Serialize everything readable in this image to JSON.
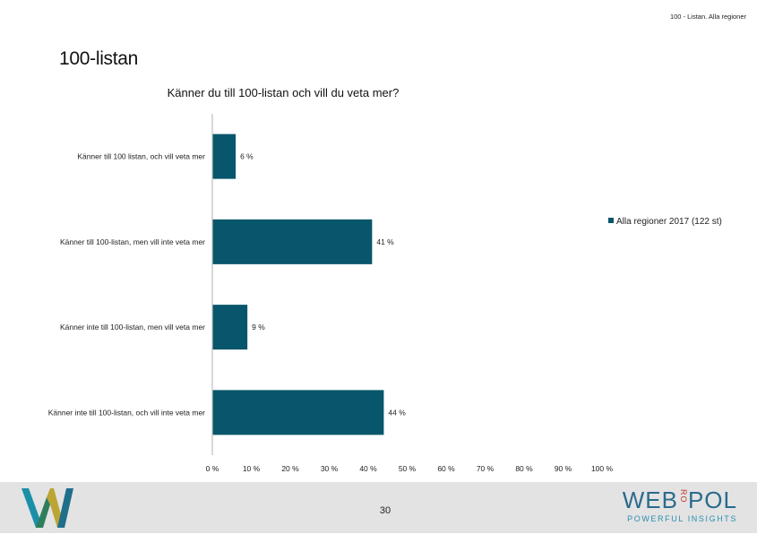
{
  "header": {
    "right_text": "100 - Listan. Alla regioner"
  },
  "page_title": "100-listan",
  "colors": {
    "bar": "#07566b",
    "axis": "#bfbfbf",
    "footer_bg": "#e3e3e3",
    "brand_blue": "#2a6b8c",
    "brand_red": "#c0392b"
  },
  "chart_data": {
    "type": "bar",
    "orientation": "horizontal",
    "title": "Känner du till 100-listan och vill du veta mer?",
    "categories": [
      "Känner till 100 listan, och vill veta mer",
      "Känner till 100-listan, men vill inte veta mer",
      "Känner inte till 100-listan, men vill veta mer",
      "Känner inte till 100-listan, och vill inte veta mer"
    ],
    "series": [
      {
        "name": "Alla regioner 2017 (122 st)",
        "values": [
          6,
          41,
          9,
          44
        ],
        "labels": [
          "6 %",
          "41 %",
          "9 %",
          "44 %"
        ]
      }
    ],
    "xlim": [
      0,
      100
    ],
    "xticks": [
      0,
      10,
      20,
      30,
      40,
      50,
      60,
      70,
      80,
      90,
      100
    ],
    "xtick_labels": [
      "0 %",
      "10 %",
      "20 %",
      "30 %",
      "40 %",
      "50 %",
      "60 %",
      "70 %",
      "80 %",
      "90 %",
      "100 %"
    ],
    "grid": false,
    "legend_position": "right"
  },
  "footer": {
    "page_number": "30",
    "brand_left_icon": "w-logo-icon",
    "brand_name_left": "WEB",
    "brand_name_ro": "RO",
    "brand_name_right": "POL",
    "tagline": "POWERFUL INSIGHTS"
  }
}
